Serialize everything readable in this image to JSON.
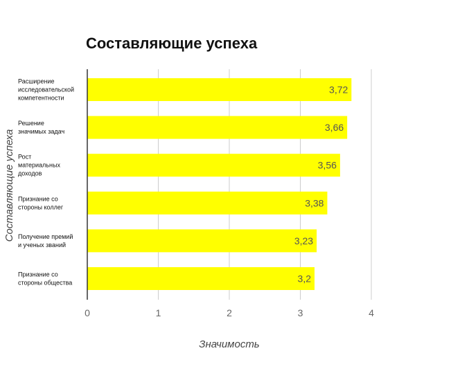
{
  "chart_data": {
    "type": "bar",
    "orientation": "horizontal",
    "title": "Составляющие успеха",
    "xlabel": "Значимость",
    "ylabel": "Составляющие успеха",
    "categories": [
      [
        "Расширение",
        "исследовательской",
        "компетентности"
      ],
      [
        "Решение",
        "значимых задач"
      ],
      [
        "Рост",
        "материальных",
        "доходов"
      ],
      [
        "Признание со",
        "стороны коллег"
      ],
      [
        "Получение премий",
        "и ученых званий"
      ],
      [
        "Признание со",
        "стороны общества"
      ]
    ],
    "values": [
      3.72,
      3.66,
      3.56,
      3.38,
      3.23,
      3.2
    ],
    "value_labels": [
      "3,72",
      "3,66",
      "3,56",
      "3,38",
      "3,23",
      "3,2"
    ],
    "xlim": [
      0,
      4
    ],
    "xticks": [
      "0",
      "1",
      "2",
      "3",
      "4"
    ],
    "grid": true,
    "bar_color": "#ffff00"
  }
}
